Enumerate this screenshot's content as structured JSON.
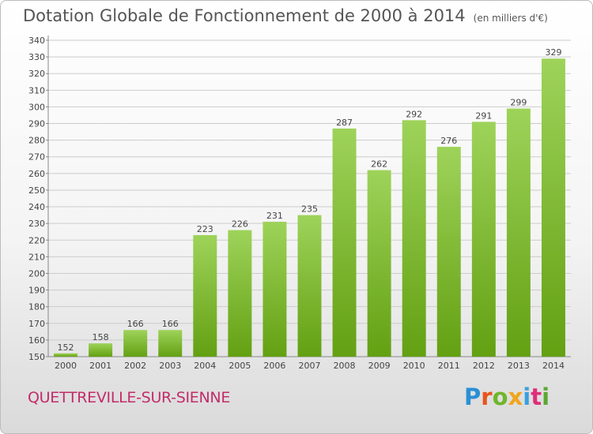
{
  "title": "Dotation Globale de Fonctionnement de 2000 à 2014",
  "unit": "(en milliers d'€)",
  "city": "QUETTREVILLE-SUR-SIENNE",
  "logo": {
    "text": "Proxiti",
    "colors": [
      "#2a8fd6",
      "#e8541c",
      "#6fb62b",
      "#f1a51c",
      "#3aa0e0",
      "#de2f7a",
      "#5aa833"
    ]
  },
  "colors": {
    "bar_light": "#9ed35a",
    "bar_dark": "#63a012",
    "grid": "#cccccc",
    "text": "#444444"
  },
  "chart_data": {
    "type": "bar",
    "categories": [
      "2000",
      "2001",
      "2002",
      "2003",
      "2004",
      "2005",
      "2006",
      "2007",
      "2008",
      "2009",
      "2010",
      "2011",
      "2012",
      "2013",
      "2014"
    ],
    "values": [
      152,
      158,
      166,
      166,
      223,
      226,
      231,
      235,
      287,
      262,
      292,
      276,
      291,
      299,
      329
    ],
    "ylim": [
      150,
      340
    ],
    "ytick_step": 10,
    "grid": true
  }
}
